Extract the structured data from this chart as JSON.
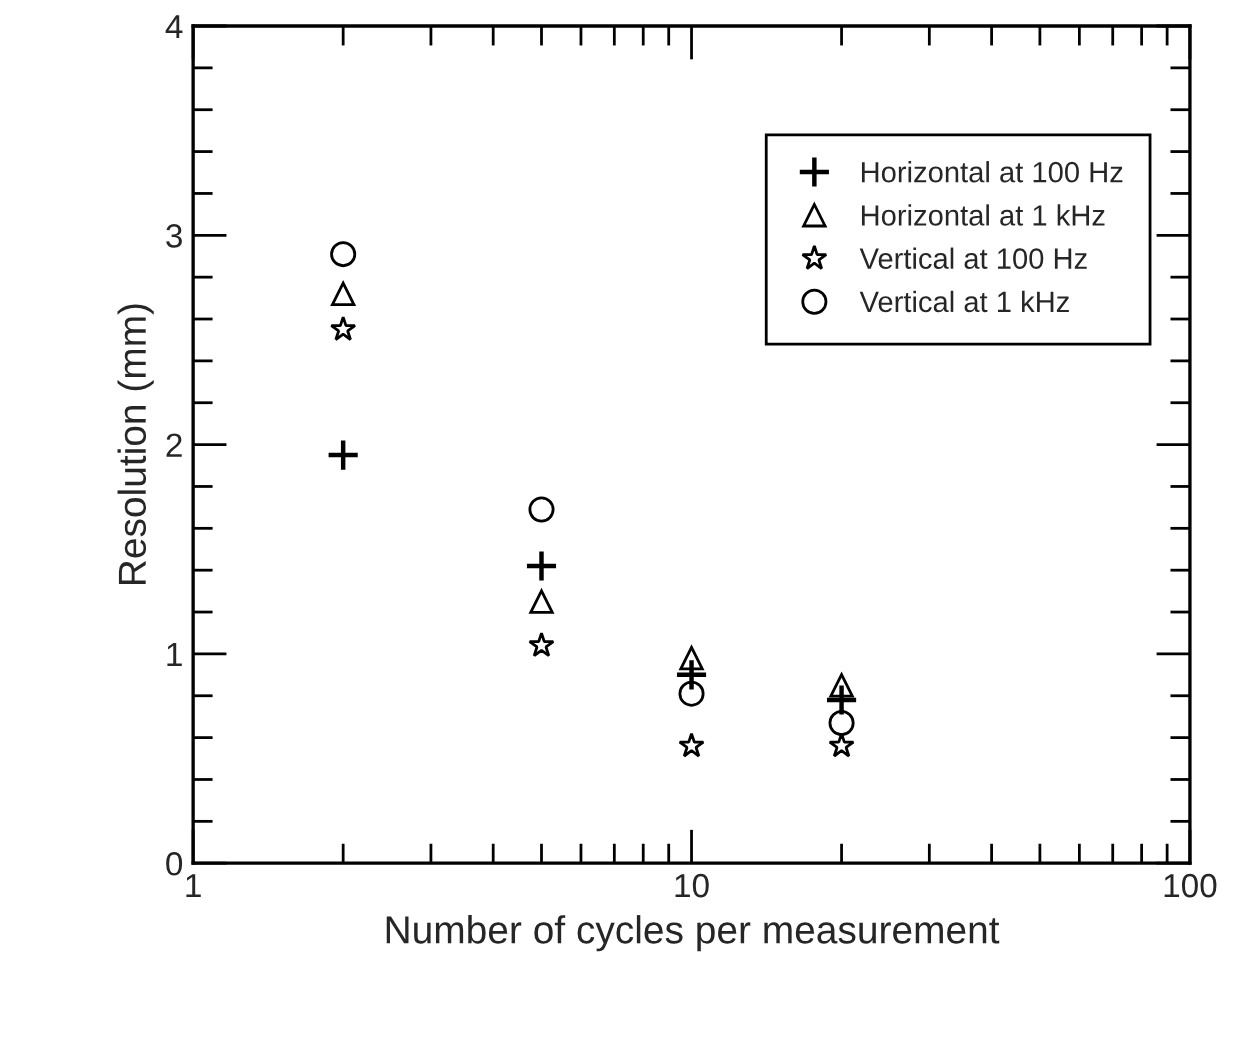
{
  "chart_data": {
    "type": "scatter",
    "xlabel": "Number of cycles per measurement",
    "ylabel": "Resolution (mm)",
    "x": [
      2,
      5,
      10,
      20
    ],
    "series": [
      {
        "name": "Horizontal at 100 Hz",
        "color": "#000000",
        "marker": "cross",
        "values": [
          1.95,
          1.42,
          0.9,
          0.78
        ]
      },
      {
        "name": "Horizontal at 1 kHz",
        "color": "#000000",
        "marker": "triangle",
        "values": [
          2.72,
          1.25,
          0.98,
          0.85
        ]
      },
      {
        "name": "Vertical at 100 Hz",
        "color": "#000000",
        "marker": "star",
        "values": [
          2.55,
          1.04,
          0.56,
          0.56
        ]
      },
      {
        "name": "Vertical at 1 kHz",
        "color": "#000000",
        "marker": "circle",
        "values": [
          2.91,
          1.69,
          0.81,
          0.67
        ]
      }
    ],
    "log": "x",
    "xlim": [
      1,
      100
    ],
    "xticks": [
      1,
      10,
      100
    ],
    "ylim": [
      0,
      4
    ],
    "yticks": [
      0,
      1,
      2,
      3,
      4
    ],
    "grid": false,
    "legend": "top right"
  }
}
